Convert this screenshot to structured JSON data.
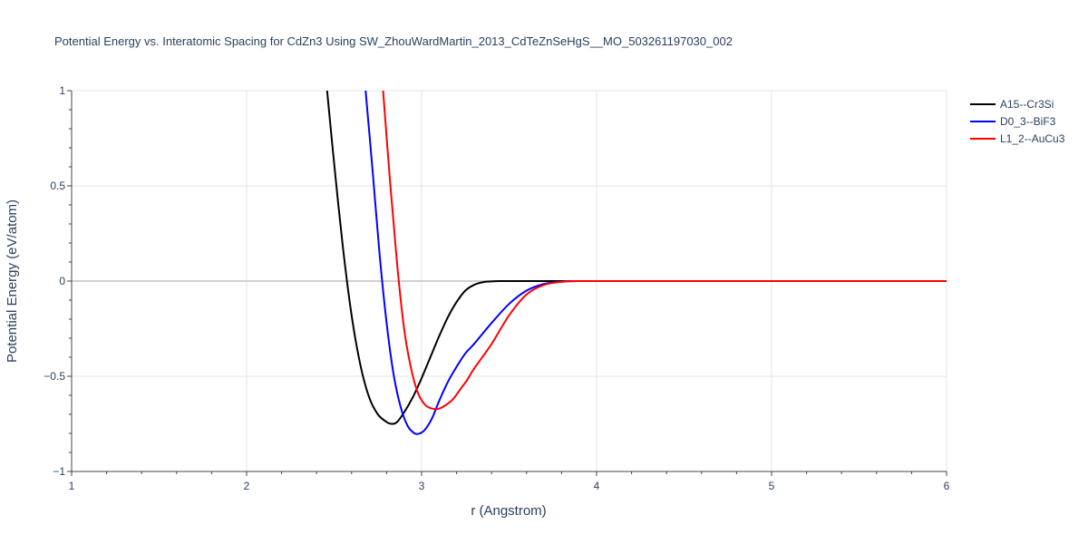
{
  "chart_data": {
    "type": "line",
    "title": "Potential Energy vs. Interatomic Spacing for CdZn3 Using SW_ZhouWardMartin_2013_CdTeZnSeHgS__MO_503261197030_002",
    "xlabel": "r (Angstrom)",
    "ylabel": "Potential Energy (eV/atom)",
    "xlim": [
      1,
      6
    ],
    "ylim": [
      -1,
      1
    ],
    "x_ticks": [
      1,
      2,
      3,
      4,
      5,
      6
    ],
    "x_tick_labels": [
      "1",
      "2",
      "3",
      "4",
      "5",
      "6"
    ],
    "y_ticks": [
      -1,
      -0.5,
      0,
      0.5,
      1
    ],
    "y_tick_labels": [
      "−1",
      "−0.5",
      "0",
      "0.5",
      "1"
    ],
    "grid": true,
    "legend_position": "top-right",
    "series": [
      {
        "name": "A15--Cr3Si",
        "color": "#000000",
        "x": [
          2.46,
          2.5,
          2.55,
          2.6,
          2.65,
          2.7,
          2.75,
          2.8,
          2.83,
          2.86,
          2.9,
          2.95,
          3.0,
          3.05,
          3.1,
          3.15,
          3.2,
          3.25,
          3.3,
          3.35,
          3.4,
          3.45,
          3.5,
          3.6,
          3.8,
          4.0,
          5.0,
          6.0
        ],
        "y": [
          1.0,
          0.62,
          0.18,
          -0.18,
          -0.44,
          -0.61,
          -0.7,
          -0.74,
          -0.75,
          -0.74,
          -0.69,
          -0.61,
          -0.51,
          -0.4,
          -0.29,
          -0.19,
          -0.11,
          -0.05,
          -0.02,
          -0.006,
          -0.002,
          0.0,
          0.0,
          0.0,
          0.0,
          0.0,
          0.0,
          0.0
        ]
      },
      {
        "name": "D0_3--BiF3",
        "color": "#0000ff",
        "x": [
          2.68,
          2.72,
          2.76,
          2.8,
          2.84,
          2.88,
          2.92,
          2.96,
          2.99,
          3.02,
          3.06,
          3.1,
          3.15,
          3.2,
          3.25,
          3.3,
          3.4,
          3.5,
          3.6,
          3.7,
          3.8,
          3.9,
          4.0,
          5.0,
          6.0
        ],
        "y": [
          1.0,
          0.58,
          0.14,
          -0.22,
          -0.49,
          -0.66,
          -0.76,
          -0.8,
          -0.8,
          -0.78,
          -0.72,
          -0.63,
          -0.53,
          -0.45,
          -0.38,
          -0.33,
          -0.22,
          -0.12,
          -0.05,
          -0.015,
          -0.003,
          0.0,
          0.0,
          0.0,
          0.0
        ]
      },
      {
        "name": "L1_2--AuCu3",
        "color": "#ff0000",
        "x": [
          2.78,
          2.82,
          2.86,
          2.9,
          2.94,
          2.98,
          3.02,
          3.06,
          3.1,
          3.14,
          3.18,
          3.22,
          3.26,
          3.3,
          3.4,
          3.5,
          3.6,
          3.7,
          3.8,
          3.9,
          4.0,
          5.0,
          6.0
        ],
        "y": [
          1.0,
          0.52,
          0.09,
          -0.25,
          -0.46,
          -0.59,
          -0.65,
          -0.67,
          -0.67,
          -0.65,
          -0.62,
          -0.57,
          -0.52,
          -0.46,
          -0.33,
          -0.18,
          -0.07,
          -0.02,
          -0.004,
          0.0,
          0.0,
          0.0,
          0.0
        ]
      }
    ]
  }
}
